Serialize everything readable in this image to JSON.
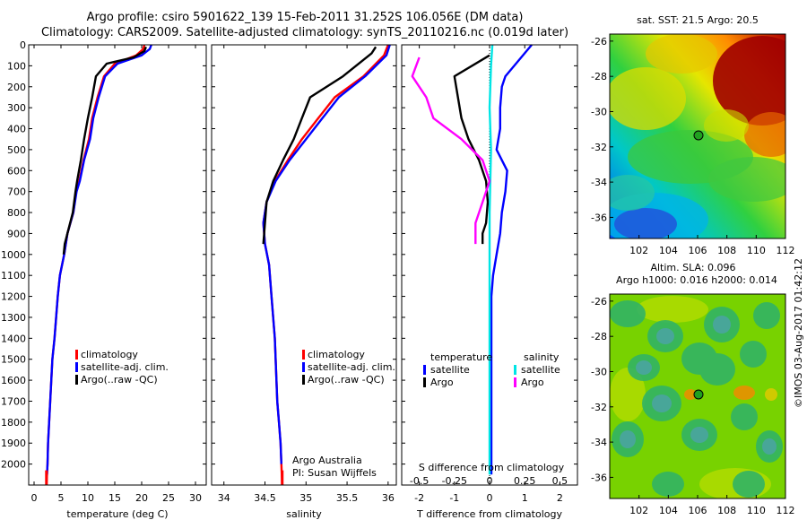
{
  "header": {
    "title_line1": "Argo profile: csiro 5901622_139 15-Feb-2011 31.252S 106.056E (DM data)",
    "title_line2": "Climatology: CARS2009. Satellite-adjusted climatology: synTS_20110216.nc (0.019d later)"
  },
  "stamp": "©IMOS 03-Aug-2017 01:42:12",
  "colors": {
    "climatology": "#ff0000",
    "satellite": "#0000ff",
    "argo": "#000000",
    "sal_satellite": "#00e5e5",
    "sal_argo": "#ff00ff"
  },
  "chart_data": [
    {
      "type": "line",
      "id": "temperature",
      "xlabel": "temperature (deg C)",
      "ylim": [
        2100,
        0
      ],
      "xlim": [
        -1,
        32
      ],
      "xticks": [
        0,
        5,
        10,
        15,
        20,
        25,
        30
      ],
      "yticks": [
        0,
        100,
        200,
        300,
        400,
        500,
        600,
        700,
        800,
        900,
        1000,
        1100,
        1200,
        1300,
        1400,
        1500,
        1600,
        1700,
        1800,
        1900,
        2000
      ],
      "legend": [
        "climatology",
        "satellite-adj. clim.",
        "Argo(..raw -QC)"
      ],
      "series": [
        {
          "name": "climatology",
          "x": [
            20.5,
            20.3,
            19,
            15,
            13,
            11.8,
            10.8,
            10.2,
            9.2,
            8.4,
            7.8,
            7.3,
            6.2,
            5.6,
            4.8,
            4.4,
            4.1,
            3.8,
            3.4,
            3.2,
            3,
            2.8,
            2.6,
            2.5,
            2.4,
            2.3
          ],
          "y": [
            0,
            20,
            50,
            90,
            150,
            250,
            350,
            450,
            550,
            650,
            700,
            800,
            900,
            1000,
            1100,
            1200,
            1300,
            1400,
            1500,
            1600,
            1700,
            1800,
            1900,
            2000,
            2050,
            2100
          ]
        },
        {
          "name": "satellite-adj. clim.",
          "x": [
            21.8,
            21.5,
            20,
            15.5,
            13.2,
            12,
            11,
            10.4,
            9.3,
            8.5,
            7.9,
            7.3,
            6.2,
            5.6,
            4.8,
            4.4,
            4.1,
            3.8,
            3.4,
            3.2,
            3,
            2.8,
            2.6,
            2.5,
            2.4
          ],
          "y": [
            0,
            20,
            50,
            90,
            150,
            250,
            350,
            450,
            550,
            650,
            700,
            800,
            900,
            1000,
            1100,
            1200,
            1300,
            1400,
            1500,
            1600,
            1700,
            1800,
            1900,
            2000,
            2050
          ]
        },
        {
          "name": "Argo(..raw -QC)",
          "x": [
            20.8,
            20.5,
            18.5,
            13.5,
            11.5,
            10.8,
            10,
            9.3,
            8.7,
            8,
            7.7,
            7.2,
            6.2,
            5.7,
            5.5
          ],
          "y": [
            10,
            30,
            60,
            90,
            150,
            250,
            350,
            450,
            550,
            650,
            700,
            800,
            900,
            950,
            1000
          ]
        }
      ]
    },
    {
      "type": "line",
      "id": "salinity",
      "xlabel": "salinity",
      "ylim": [
        2100,
        0
      ],
      "xlim": [
        33.85,
        36.1
      ],
      "xticks": [
        34,
        34.5,
        35,
        35.5,
        36
      ],
      "xtick_labels": [
        "34",
        "34.5",
        "35",
        "35.5",
        "36"
      ],
      "legend": [
        "climatology",
        "satellite-adj. clim.",
        "Argo(..raw -QC)"
      ],
      "annotations": [
        "Argo Australia",
        "PI: Susan Wijffels"
      ],
      "series": [
        {
          "name": "climatology",
          "x": [
            36,
            35.95,
            35.7,
            35.35,
            35.15,
            34.95,
            34.78,
            34.62,
            34.52,
            34.48,
            34.5,
            34.55,
            34.58,
            34.62,
            34.64,
            34.65,
            34.67,
            34.69,
            34.7,
            34.71
          ],
          "y": [
            0,
            50,
            150,
            250,
            350,
            450,
            550,
            650,
            750,
            850,
            950,
            1050,
            1200,
            1400,
            1600,
            1700,
            1800,
            1900,
            2000,
            2100
          ]
        },
        {
          "name": "satellite-adj. clim.",
          "x": [
            36.02,
            35.98,
            35.72,
            35.4,
            35.2,
            35,
            34.8,
            34.63,
            34.52,
            34.48,
            34.5,
            34.55,
            34.58,
            34.62,
            34.64,
            34.65,
            34.67,
            34.69,
            34.7
          ],
          "y": [
            0,
            50,
            150,
            250,
            350,
            450,
            550,
            650,
            750,
            850,
            950,
            1050,
            1200,
            1400,
            1600,
            1700,
            1800,
            1900,
            2000
          ]
        },
        {
          "name": "Argo(..raw -QC)",
          "x": [
            35.85,
            35.8,
            35.45,
            35.05,
            34.95,
            34.85,
            34.72,
            34.6,
            34.52,
            34.5,
            34.48
          ],
          "y": [
            10,
            40,
            150,
            250,
            350,
            450,
            550,
            650,
            750,
            850,
            950
          ]
        }
      ]
    },
    {
      "type": "line",
      "id": "difference",
      "xlabel": "T difference from climatology",
      "top_label": "S difference from climatology",
      "ylim": [
        2100,
        0
      ],
      "xlim": [
        -2.5,
        2.5
      ],
      "xticks": [
        -2,
        -1,
        0,
        1,
        2
      ],
      "s_xticks": [
        -0.5,
        -0.25,
        0,
        0.25,
        0.5
      ],
      "s_xtick_labels": [
        "-0.5",
        "-0.25",
        "0",
        "0.25",
        "0.5"
      ],
      "legend_headers": [
        "temperature",
        "salinity"
      ],
      "legend": [
        "satellite",
        "Argo",
        "satellite",
        "Argo"
      ],
      "series": [
        {
          "name": "temperature satellite",
          "x": [
            1.2,
            0.9,
            0.45,
            0.35,
            0.3,
            0.3,
            0.2,
            0.5,
            0.45,
            0.35,
            0.3,
            0.2,
            0.1,
            0.05,
            0.05,
            0.05,
            0.05,
            0.05,
            0.05
          ],
          "y": [
            0,
            60,
            150,
            200,
            300,
            400,
            500,
            600,
            700,
            800,
            900,
            1000,
            1100,
            1200,
            1400,
            1600,
            1800,
            2000,
            2050
          ]
        },
        {
          "name": "temperature Argo",
          "x": [
            0,
            -1,
            -0.9,
            -0.8,
            -0.6,
            -0.3,
            -0.1,
            -0.05,
            -0.1,
            -0.2,
            -0.2
          ],
          "y": [
            50,
            150,
            250,
            350,
            450,
            550,
            650,
            750,
            850,
            900,
            950
          ]
        },
        {
          "name": "salinity satellite",
          "x": [
            0.02,
            0.01,
            0,
            0.01,
            0,
            0,
            0,
            0,
            0,
            0
          ],
          "y": [
            0,
            100,
            300,
            500,
            800,
            1100,
            1400,
            1700,
            2000,
            2050
          ]
        },
        {
          "name": "salinity Argo",
          "x": [
            -0.5,
            -0.55,
            -0.45,
            -0.4,
            -0.2,
            -0.05,
            0,
            -0.05,
            -0.1,
            -0.1,
            -0.1
          ],
          "y": [
            60,
            150,
            250,
            350,
            450,
            550,
            650,
            750,
            850,
            900,
            950
          ]
        }
      ]
    },
    {
      "type": "heatmap",
      "id": "sst_map",
      "title": "sat. SST: 21.5 Argo: 20.5",
      "xlim": [
        100,
        112
      ],
      "ylim": [
        -37.2,
        -25.6
      ],
      "xticks": [
        102,
        104,
        106,
        108,
        110,
        112
      ],
      "yticks": [
        -26,
        -28,
        -30,
        -32,
        -34,
        -36
      ],
      "profile_location": [
        106.056,
        -31.252
      ]
    },
    {
      "type": "heatmap",
      "id": "sla_map",
      "title_line1": "Altim. SLA: 0.096",
      "title_line2": "Argo h1000: 0.016 h2000: 0.014",
      "xlim": [
        100,
        112
      ],
      "ylim": [
        -37.2,
        -25.6
      ],
      "xticks": [
        102,
        104,
        106,
        108,
        110,
        112
      ],
      "yticks": [
        -26,
        -28,
        -30,
        -32,
        -34,
        -36
      ],
      "profile_location": [
        106.056,
        -31.252
      ]
    }
  ]
}
